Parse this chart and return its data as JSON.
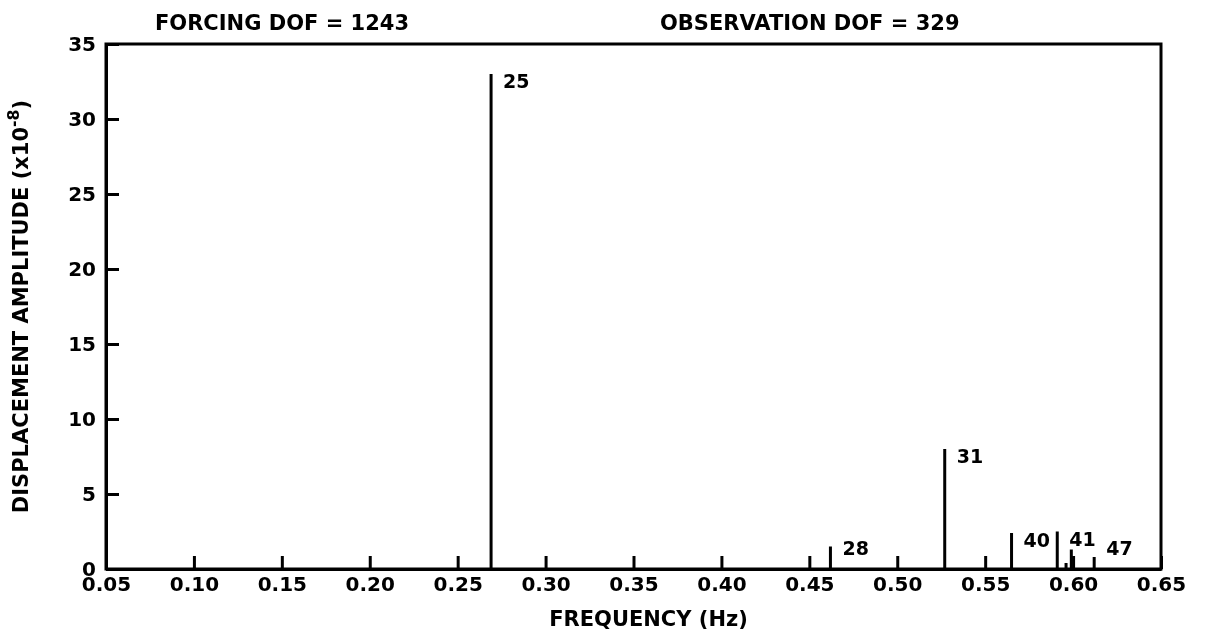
{
  "chart_data": {
    "type": "bar",
    "title": "FORCING DOF = 1243",
    "subtitle": "OBSERVATION DOF = 329",
    "xlabel": "FREQUENCY (Hz)",
    "ylabel": "DISPLACEMENT AMPLITUDE (x10$^{-8}$)",
    "x": [
      0.269,
      0.462,
      0.527,
      0.565,
      0.591,
      0.596,
      0.599,
      0.612
    ],
    "values": [
      33,
      1.5,
      8,
      2.4,
      2.5,
      0.4,
      1.3,
      0.8
    ],
    "color": "#000000",
    "xlim": [
      0.05,
      0.65
    ],
    "xticks": [
      {
        "value": 0.05,
        "label": "0.05"
      },
      {
        "value": 0.1,
        "label": "0.10"
      },
      {
        "value": 0.15,
        "label": "0.15"
      },
      {
        "value": 0.2,
        "label": "0.20"
      },
      {
        "value": 0.25,
        "label": "0.25"
      },
      {
        "value": 0.3,
        "label": "0.30"
      },
      {
        "value": 0.35,
        "label": "0.35"
      },
      {
        "value": 0.4,
        "label": "0.40"
      },
      {
        "value": 0.45,
        "label": "0.45"
      },
      {
        "value": 0.5,
        "label": "0.50"
      },
      {
        "value": 0.55,
        "label": "0.55"
      },
      {
        "value": 0.6,
        "label": "0.60"
      },
      {
        "value": 0.65,
        "label": "0.65"
      }
    ],
    "ylim": [
      0,
      35
    ],
    "yticks": [
      0,
      5,
      10,
      15,
      20,
      25,
      30,
      35
    ],
    "annotations": [
      {
        "text": "25",
        "x": 0.269,
        "y": 33
      },
      {
        "text": "28",
        "x": 0.462,
        "y": 1.5
      },
      {
        "text": "31",
        "x": 0.527,
        "y": 8
      },
      {
        "text": "40",
        "x": 0.565,
        "y": 2.4
      },
      {
        "text": "41",
        "x": 0.591,
        "y": 2.5
      },
      {
        "text": "47",
        "x": 0.612,
        "y": 0.8
      }
    ]
  }
}
